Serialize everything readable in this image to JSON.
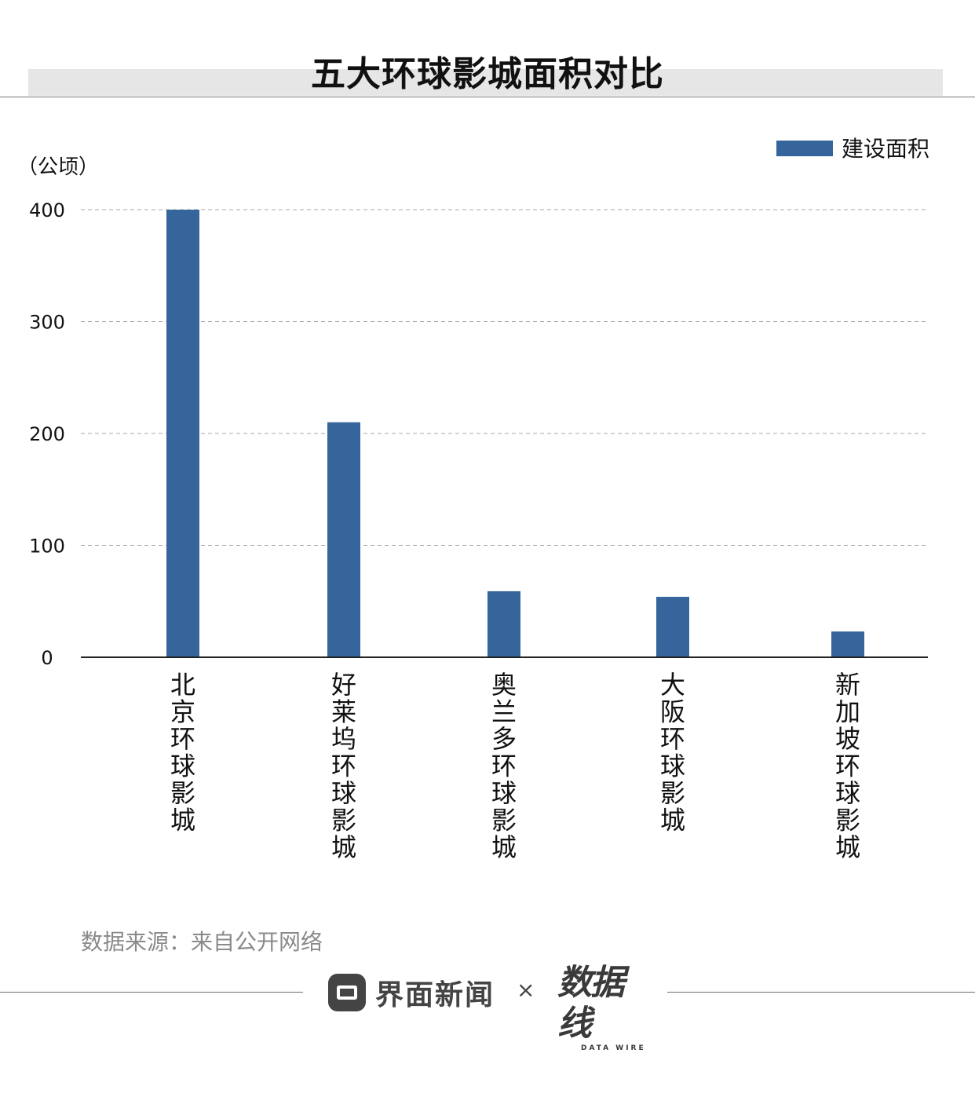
{
  "title": "五大环球影城面积对比",
  "chart_data": {
    "type": "bar",
    "unit": "（公顷）",
    "categories": [
      "北京环球影城",
      "好莱坞环球影城",
      "奥兰多环球影城",
      "大阪环球影城",
      "新加坡环球影城"
    ],
    "series": [
      {
        "name": "建设面积",
        "values": [
          400,
          210,
          59,
          54,
          23
        ],
        "color": "#35659a"
      }
    ],
    "yticks": [
      "0",
      "100",
      "200",
      "300",
      "400"
    ],
    "ylim": [
      0,
      400
    ],
    "grid": true,
    "legend_position": "top-right"
  },
  "source": "数据来源：来自公开网络",
  "footer": {
    "brand_name": "界面新闻",
    "cross": "×",
    "partner_logo": "数据线",
    "partner_logo_sub": "DATA WIRE"
  }
}
